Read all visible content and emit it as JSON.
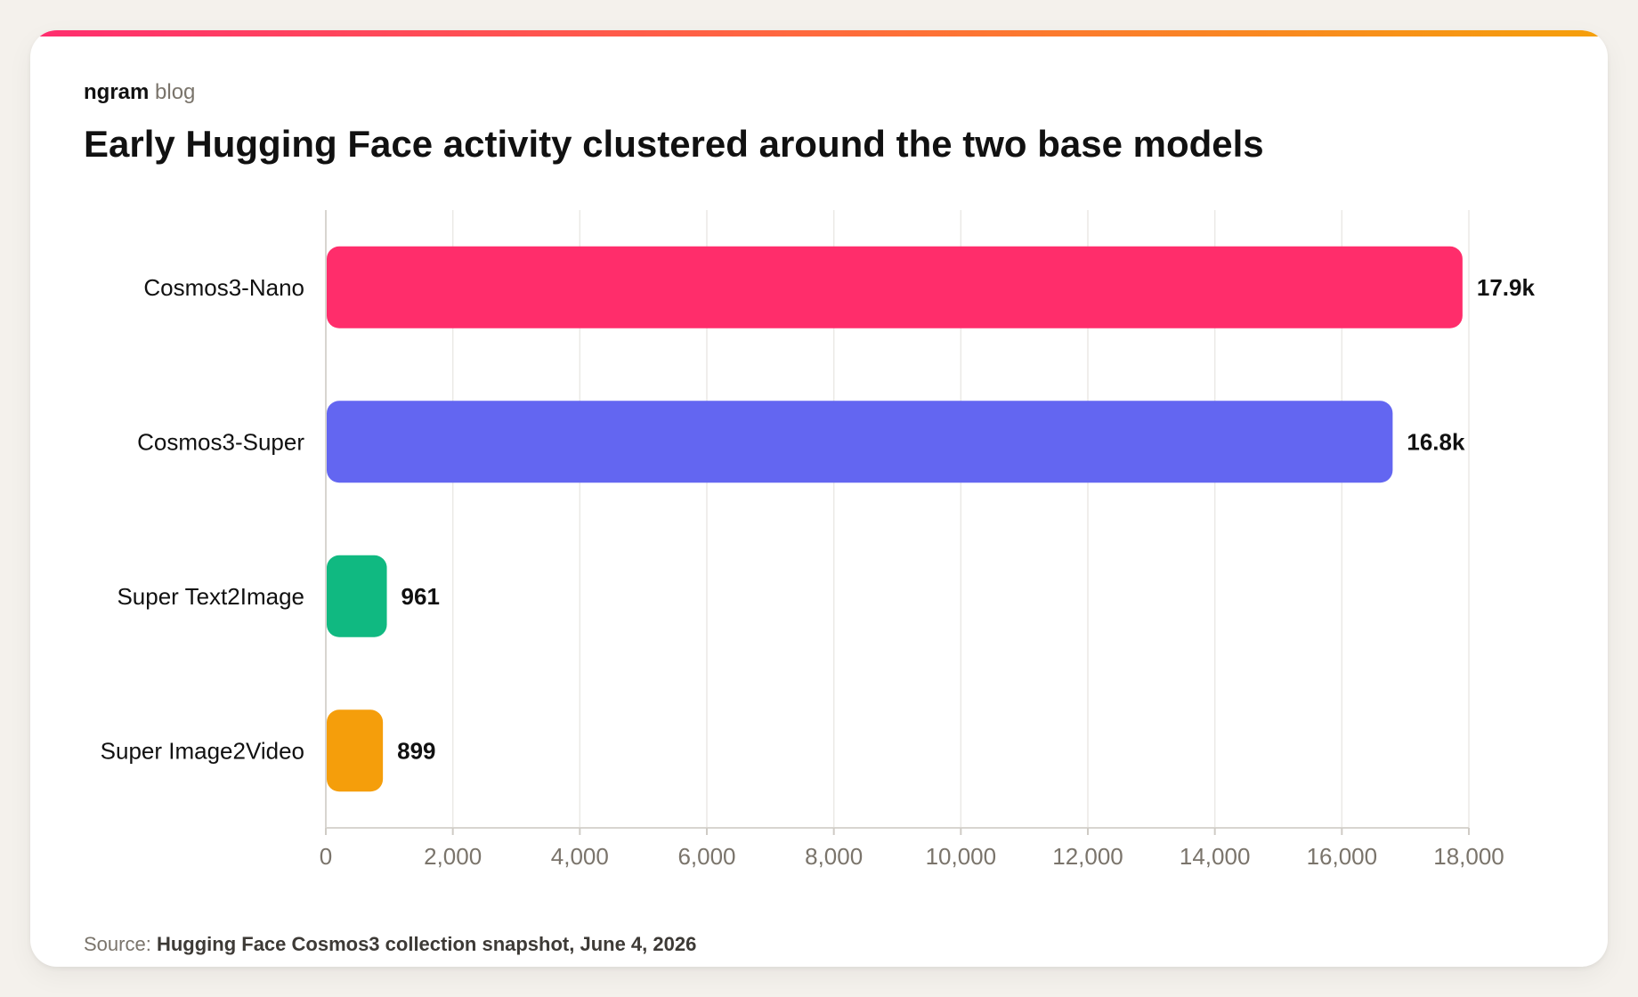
{
  "brand": {
    "name": "ngram",
    "suffix": "blog"
  },
  "source": {
    "label": "Source:",
    "text": "Hugging Face Cosmos3 collection snapshot, June 4, 2026"
  },
  "chart_data": {
    "type": "bar",
    "orientation": "horizontal",
    "title": "Early Hugging Face activity clustered around the two base models",
    "xlabel": "",
    "ylabel": "",
    "xlim": [
      0,
      18000
    ],
    "grid": true,
    "legend": "none",
    "x_ticks": [
      0,
      2000,
      4000,
      6000,
      8000,
      10000,
      12000,
      14000,
      16000,
      18000
    ],
    "x_tick_labels": [
      "0",
      "2,000",
      "4,000",
      "6,000",
      "8,000",
      "10,000",
      "12,000",
      "14,000",
      "16,000",
      "18,000"
    ],
    "categories": [
      "Cosmos3-Nano",
      "Cosmos3-Super",
      "Super Text2Image",
      "Super Image2Video"
    ],
    "values": [
      17900,
      16800,
      961,
      899
    ],
    "value_labels": [
      "17.9k",
      "16.8k",
      "961",
      "899"
    ],
    "colors": [
      "#ff2d6b",
      "#6366f1",
      "#10b981",
      "#f59e0b"
    ]
  }
}
